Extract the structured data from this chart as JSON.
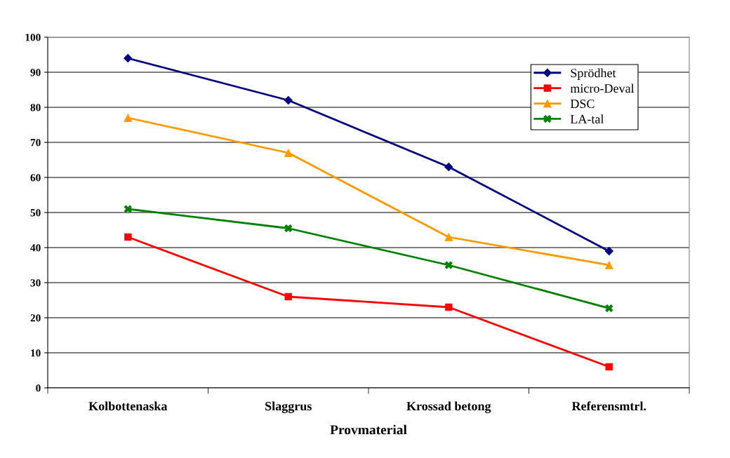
{
  "chart_data": {
    "type": "line",
    "xlabel": "Provmaterial",
    "categories": [
      "Kolbottenaska",
      "Slaggrus",
      "Krossad betong",
      "Referensmtrl."
    ],
    "series": [
      {
        "name": "Sprödhet",
        "color": "#000080",
        "marker": "diamond",
        "values": [
          94,
          82,
          63,
          39
        ]
      },
      {
        "name": "micro-Deval",
        "color": "#ff0000",
        "marker": "square",
        "values": [
          43,
          26,
          23,
          6
        ]
      },
      {
        "name": "DSC",
        "color": "#ff9900",
        "marker": "triangle",
        "values": [
          77,
          67,
          43,
          35
        ]
      },
      {
        "name": "LA-tal",
        "color": "#008000",
        "marker": "cross",
        "values": [
          51,
          45.5,
          35,
          22.7
        ]
      }
    ],
    "ylim": [
      0,
      100
    ],
    "yticks": [
      0,
      10,
      20,
      30,
      40,
      50,
      60,
      70,
      80,
      90,
      100
    ],
    "grid": "y",
    "legend": "top right",
    "line_style": "solid"
  }
}
